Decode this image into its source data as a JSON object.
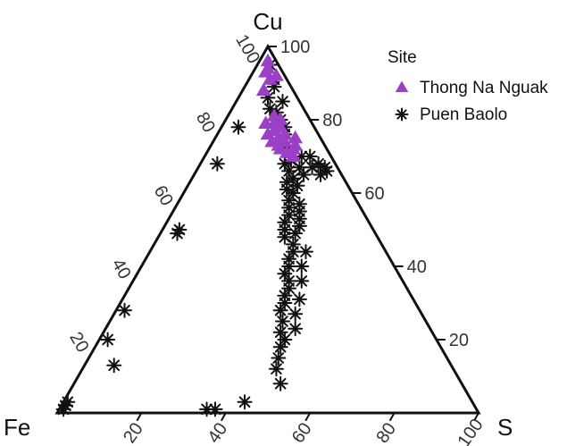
{
  "chart_data": {
    "type": "scatter",
    "subtype": "ternary",
    "vertex_labels": {
      "top": "Cu",
      "left": "Fe",
      "right": "S"
    },
    "axes": {
      "left_edge": {
        "name": "Cu",
        "ticks": [
          "20",
          "40",
          "60",
          "80",
          "100"
        ]
      },
      "right_edge": {
        "name": "S",
        "ticks": [
          "100",
          "80",
          "60",
          "40",
          "20"
        ]
      },
      "bottom_edge": {
        "name": "Fe",
        "ticks": [
          "20",
          "40",
          "60",
          "80",
          "100"
        ]
      }
    },
    "range": [
      0,
      100
    ],
    "grid": false,
    "legend": {
      "title": "Site",
      "placement": "top-right"
    },
    "series": [
      {
        "name": "Thong Na Nguak",
        "marker": "triangle",
        "color": "#9b3fc6",
        "points": [
          {
            "cu": 96,
            "fe": 2,
            "s": 2
          },
          {
            "cu": 94,
            "fe": 3,
            "s": 3
          },
          {
            "cu": 93,
            "fe": 4,
            "s": 3
          },
          {
            "cu": 92,
            "fe": 2,
            "s": 6
          },
          {
            "cu": 91,
            "fe": 4,
            "s": 5
          },
          {
            "cu": 88,
            "fe": 7,
            "s": 5
          },
          {
            "cu": 81,
            "fe": 8,
            "s": 11
          },
          {
            "cu": 80,
            "fe": 7,
            "s": 13
          },
          {
            "cu": 79,
            "fe": 9,
            "s": 12
          },
          {
            "cu": 78,
            "fe": 8,
            "s": 14
          },
          {
            "cu": 77,
            "fe": 10,
            "s": 13
          },
          {
            "cu": 76,
            "fe": 8,
            "s": 16
          },
          {
            "cu": 75,
            "fe": 10,
            "s": 15
          },
          {
            "cu": 74,
            "fe": 9,
            "s": 17
          },
          {
            "cu": 73,
            "fe": 11,
            "s": 16
          },
          {
            "cu": 72,
            "fe": 8,
            "s": 20
          },
          {
            "cu": 71,
            "fe": 10,
            "s": 19
          },
          {
            "cu": 70,
            "fe": 9,
            "s": 21
          },
          {
            "cu": 76,
            "fe": 12,
            "s": 12
          },
          {
            "cu": 74,
            "fe": 12,
            "s": 14
          },
          {
            "cu": 72,
            "fe": 11,
            "s": 17
          },
          {
            "cu": 75,
            "fe": 6,
            "s": 19
          },
          {
            "cu": 73,
            "fe": 7,
            "s": 20
          },
          {
            "cu": 79,
            "fe": 11,
            "s": 10
          }
        ]
      },
      {
        "name": "Puen Baolo",
        "marker": "asterisk",
        "color": "#111111",
        "points": [
          {
            "cu": 95,
            "fe": 2,
            "s": 3
          },
          {
            "cu": 91,
            "fe": 3,
            "s": 6
          },
          {
            "cu": 89,
            "fe": 4,
            "s": 7
          },
          {
            "cu": 86,
            "fe": 7,
            "s": 7
          },
          {
            "cu": 85,
            "fe": 4,
            "s": 11
          },
          {
            "cu": 83,
            "fe": 8,
            "s": 9
          },
          {
            "cu": 82,
            "fe": 7,
            "s": 11
          },
          {
            "cu": 80,
            "fe": 7,
            "s": 13
          },
          {
            "cu": 78,
            "fe": 7,
            "s": 15
          },
          {
            "cu": 76,
            "fe": 8,
            "s": 16
          },
          {
            "cu": 73,
            "fe": 9,
            "s": 18
          },
          {
            "cu": 71,
            "fe": 9,
            "s": 20
          },
          {
            "cu": 70,
            "fe": 7,
            "s": 23
          },
          {
            "cu": 69,
            "fe": 10,
            "s": 21
          },
          {
            "cu": 68,
            "fe": 12,
            "s": 20
          },
          {
            "cu": 67,
            "fe": 9,
            "s": 24
          },
          {
            "cu": 66,
            "fe": 12,
            "s": 22
          },
          {
            "cu": 65,
            "fe": 9,
            "s": 26
          },
          {
            "cu": 64,
            "fe": 12,
            "s": 24
          },
          {
            "cu": 63,
            "fe": 14,
            "s": 23
          },
          {
            "cu": 62,
            "fe": 12,
            "s": 26
          },
          {
            "cu": 61,
            "fe": 15,
            "s": 24
          },
          {
            "cu": 60,
            "fe": 14,
            "s": 26
          },
          {
            "cu": 58,
            "fe": 16,
            "s": 26
          },
          {
            "cu": 57,
            "fe": 14,
            "s": 29
          },
          {
            "cu": 56,
            "fe": 17,
            "s": 27
          },
          {
            "cu": 55,
            "fe": 15,
            "s": 30
          },
          {
            "cu": 54,
            "fe": 18,
            "s": 28
          },
          {
            "cu": 53,
            "fe": 16,
            "s": 31
          },
          {
            "cu": 52,
            "fe": 20,
            "s": 28
          },
          {
            "cu": 51,
            "fe": 17,
            "s": 32
          },
          {
            "cu": 50,
            "fe": 21,
            "s": 29
          },
          {
            "cu": 49,
            "fe": 19,
            "s": 32
          },
          {
            "cu": 48,
            "fe": 22,
            "s": 30
          },
          {
            "cu": 46,
            "fe": 21,
            "s": 33
          },
          {
            "cu": 44,
            "fe": 22,
            "s": 34
          },
          {
            "cu": 42,
            "fe": 24,
            "s": 34
          },
          {
            "cu": 40,
            "fe": 25,
            "s": 35
          },
          {
            "cu": 38,
            "fe": 27,
            "s": 35
          },
          {
            "cu": 36,
            "fe": 27,
            "s": 37
          },
          {
            "cu": 34,
            "fe": 28,
            "s": 38
          },
          {
            "cu": 32,
            "fe": 30,
            "s": 38
          },
          {
            "cu": 30,
            "fe": 31,
            "s": 39
          },
          {
            "cu": 28,
            "fe": 33,
            "s": 39
          },
          {
            "cu": 25,
            "fe": 34,
            "s": 41
          },
          {
            "cu": 22,
            "fe": 36,
            "s": 42
          },
          {
            "cu": 20,
            "fe": 36,
            "s": 44
          },
          {
            "cu": 18,
            "fe": 38,
            "s": 44
          },
          {
            "cu": 15,
            "fe": 40,
            "s": 45
          },
          {
            "cu": 12,
            "fe": 42,
            "s": 46
          },
          {
            "cu": 8,
            "fe": 43,
            "s": 49
          },
          {
            "cu": 3,
            "fe": 54,
            "s": 43
          },
          {
            "cu": 1,
            "fe": 64,
            "s": 35
          },
          {
            "cu": 1,
            "fe": 62,
            "s": 37
          },
          {
            "cu": 68,
            "fe": 4,
            "s": 28
          },
          {
            "cu": 67,
            "fe": 3,
            "s": 30
          },
          {
            "cu": 66,
            "fe": 3,
            "s": 31
          },
          {
            "cu": 65,
            "fe": 5,
            "s": 30
          },
          {
            "cu": 67,
            "fe": 6,
            "s": 27
          },
          {
            "cu": 70,
            "fe": 5,
            "s": 25
          },
          {
            "cu": 44,
            "fe": 19,
            "s": 37
          },
          {
            "cu": 40,
            "fe": 22,
            "s": 38
          },
          {
            "cu": 36,
            "fe": 24,
            "s": 40
          },
          {
            "cu": 31,
            "fe": 27,
            "s": 42
          },
          {
            "cu": 27,
            "fe": 30,
            "s": 43
          },
          {
            "cu": 23,
            "fe": 32,
            "s": 45
          },
          {
            "cu": 78,
            "fe": 18,
            "s": 4
          },
          {
            "cu": 68,
            "fe": 28,
            "s": 4
          },
          {
            "cu": 50,
            "fe": 46,
            "s": 4
          },
          {
            "cu": 49,
            "fe": 47,
            "s": 4
          },
          {
            "cu": 28,
            "fe": 70,
            "s": 2
          },
          {
            "cu": 20,
            "fe": 78,
            "s": 2
          },
          {
            "cu": 13,
            "fe": 80,
            "s": 7
          },
          {
            "cu": 3,
            "fe": 96,
            "s": 1
          },
          {
            "cu": 2,
            "fe": 97,
            "s": 1
          },
          {
            "cu": 1,
            "fe": 98,
            "s": 1
          }
        ]
      }
    ]
  }
}
